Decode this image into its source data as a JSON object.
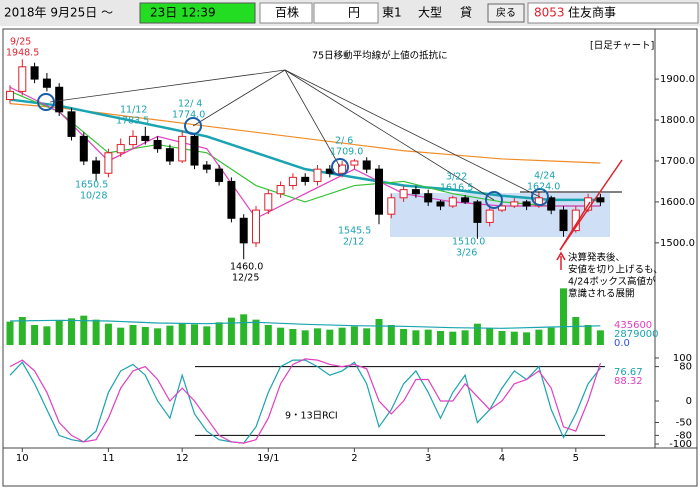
{
  "toolbar": {
    "date": "2018年 9月25日 ～",
    "time": "23日 12:39",
    "unit": "百株",
    "currency": "円",
    "market": "東1",
    "size": "大型",
    "lend": "貸",
    "back": "戻る",
    "code": "8053",
    "name": "住友商事"
  },
  "chart_data": {
    "type": "candlestick",
    "categories": [
      null,
      "10",
      null,
      null,
      null,
      null,
      null,
      null,
      "11",
      null,
      null,
      null,
      null,
      null,
      "12",
      null,
      null,
      null,
      null,
      null,
      null,
      "19/1",
      null,
      null,
      null,
      null,
      null,
      null,
      "2",
      null,
      null,
      null,
      null,
      null,
      "3",
      null,
      null,
      null,
      null,
      null,
      "4",
      null,
      null,
      null,
      null,
      null,
      "5",
      null,
      null
    ],
    "open": [
      1850,
      1870,
      1930,
      1900,
      1880,
      1820,
      1760,
      1700,
      1670,
      1720,
      1740,
      1760,
      1750,
      1730,
      1700,
      1760,
      1690,
      1680,
      1650,
      1560,
      1500,
      1580,
      1620,
      1640,
      1660,
      1650,
      1680,
      1670,
      1690,
      1700,
      1680,
      1570,
      1610,
      1630,
      1620,
      1600,
      1590,
      1610,
      1600,
      1550,
      1580,
      1590,
      1600,
      1590,
      1610,
      1580,
      1530,
      1580,
      1610
    ],
    "high": [
      1885,
      1948.5,
      1940,
      1915,
      1890,
      1830,
      1770,
      1710,
      1730,
      1755,
      1775,
      1783.5,
      1760,
      1740,
      1774,
      1765,
      1700,
      1690,
      1660,
      1570,
      1590,
      1630,
      1650,
      1670,
      1670,
      1690,
      1690,
      1700,
      1705,
      1709,
      1690,
      1620,
      1640,
      1640,
      1630,
      1605,
      1615,
      1616.5,
      1605,
      1590,
      1600,
      1610,
      1605,
      1624,
      1615,
      1590,
      1590,
      1620,
      1620
    ],
    "low": [
      1840,
      1860,
      1890,
      1870,
      1810,
      1750,
      1690,
      1650.5,
      1660,
      1710,
      1730,
      1740,
      1720,
      1690,
      1695,
      1680,
      1670,
      1640,
      1550,
      1460,
      1490,
      1570,
      1610,
      1630,
      1640,
      1640,
      1660,
      1660,
      1680,
      1670,
      1545.5,
      1560,
      1600,
      1610,
      1590,
      1580,
      1585,
      1595,
      1510,
      1540,
      1575,
      1585,
      1580,
      1585,
      1570,
      1515,
      1525,
      1575,
      1590
    ],
    "close": [
      1870,
      1930,
      1900,
      1880,
      1820,
      1760,
      1700,
      1670,
      1720,
      1740,
      1760,
      1750,
      1730,
      1700,
      1760,
      1690,
      1680,
      1650,
      1560,
      1500,
      1580,
      1620,
      1640,
      1660,
      1650,
      1680,
      1670,
      1690,
      1700,
      1680,
      1570,
      1610,
      1630,
      1620,
      1600,
      1590,
      1610,
      1600,
      1550,
      1580,
      1590,
      1600,
      1590,
      1610,
      1580,
      1530,
      1580,
      1610,
      1600
    ],
    "series": [
      {
        "color": "#f08c28",
        "x": [
          0,
          4,
          8,
          12,
          16,
          20,
          24,
          28,
          32,
          36,
          40,
          44,
          48
        ],
        "values": [
          1840,
          1830,
          1815,
          1800,
          1785,
          1770,
          1755,
          1740,
          1725,
          1715,
          1705,
          1700,
          1695
        ]
      },
      {
        "color": "#1aa3b0",
        "x": [
          0,
          4,
          8,
          12,
          16,
          20,
          24,
          28,
          32,
          36,
          40,
          44,
          48
        ],
        "values": [
          1850,
          1835,
          1810,
          1785,
          1760,
          1720,
          1680,
          1660,
          1640,
          1630,
          1615,
          1605,
          1605
        ]
      },
      {
        "color": "#33c233",
        "x": [
          0,
          4,
          8,
          12,
          16,
          20,
          24,
          28,
          32,
          36,
          40,
          44,
          48
        ],
        "values": [
          1870,
          1820,
          1720,
          1740,
          1720,
          1640,
          1600,
          1640,
          1650,
          1620,
          1600,
          1590,
          1590
        ]
      },
      {
        "color": "#e040c0",
        "x": [
          0,
          4,
          8,
          12,
          16,
          20,
          24,
          28,
          32,
          36,
          40,
          44,
          48
        ],
        "values": [
          1880,
          1820,
          1700,
          1760,
          1730,
          1560,
          1620,
          1680,
          1620,
          1600,
          1590,
          1590,
          1590
        ]
      }
    ],
    "ylim": [
      1463,
      2015
    ],
    "yticks": [
      {
        "value": 1900,
        "label": "1900.0"
      },
      {
        "value": 1800,
        "label": "1800.0"
      },
      {
        "value": 1700,
        "label": "1700.0"
      },
      {
        "value": 1600,
        "label": "1600.0"
      },
      {
        "value": 1500,
        "label": "1500.0"
      }
    ],
    "volume": {
      "color": "#2ab52a",
      "ylim": [
        0,
        9000000
      ],
      "values": [
        3500000,
        4200000,
        3000000,
        2800000,
        3600000,
        4000000,
        4400000,
        3800000,
        3200000,
        2600000,
        3000000,
        2700000,
        2500000,
        2900000,
        3300000,
        3100000,
        2800000,
        3400000,
        4100000,
        4600000,
        3800000,
        3000000,
        2600000,
        2400000,
        2200000,
        2500000,
        2300000,
        2600000,
        2800000,
        2500000,
        3900000,
        3000000,
        2400000,
        2200000,
        2300000,
        2100000,
        2000000,
        2200000,
        3200000,
        2500000,
        2100000,
        2000000,
        1900000,
        2300000,
        2600000,
        8500000,
        4200000,
        3000000,
        2200000
      ],
      "ma": {
        "color": "#1aa3b0",
        "x": [
          0,
          4,
          8,
          12,
          16,
          20,
          24,
          28,
          32,
          36,
          40,
          44,
          48
        ],
        "values": [
          3600000,
          3700000,
          3600000,
          3300000,
          3200000,
          3400000,
          3100000,
          2900000,
          2800000,
          2600000,
          2500000,
          2700000,
          2879000
        ]
      },
      "labels": [
        {
          "text": "435600",
          "color": "#e040c0"
        },
        {
          "text": "2879000",
          "color": "#1aa3b0"
        },
        {
          "text": "0.0",
          "color": "#3050e0"
        }
      ]
    },
    "rci": {
      "ylim": [
        -100,
        100
      ],
      "yticks": [
        100,
        80,
        0,
        -50,
        -80,
        -100
      ],
      "series": [
        {
          "color": "#1aa3b0",
          "values": [
            60,
            90,
            40,
            -20,
            -80,
            -90,
            -95,
            -70,
            20,
            70,
            85,
            60,
            0,
            -40,
            60,
            -30,
            -70,
            -90,
            -95,
            -98,
            -60,
            20,
            80,
            95,
            95,
            80,
            60,
            70,
            90,
            40,
            -60,
            -20,
            40,
            70,
            20,
            -40,
            20,
            60,
            -50,
            -20,
            30,
            70,
            50,
            80,
            -20,
            -85,
            -30,
            40,
            76.67
          ],
          "label": "76.67"
        },
        {
          "color": "#e040c0",
          "values": [
            80,
            95,
            70,
            20,
            -50,
            -80,
            -95,
            -90,
            -40,
            30,
            70,
            80,
            50,
            0,
            30,
            0,
            -40,
            -80,
            -95,
            -98,
            -90,
            -40,
            40,
            85,
            98,
            95,
            85,
            80,
            85,
            75,
            0,
            -30,
            0,
            50,
            50,
            0,
            0,
            40,
            10,
            -20,
            0,
            40,
            50,
            70,
            30,
            -60,
            -70,
            0,
            88.32
          ],
          "label": "88.32"
        }
      ]
    },
    "annotations": [
      "9/25",
      "1948.5",
      "11/12",
      "1783.5",
      "12/ 4",
      "1774.0",
      "1650.5",
      "10/28",
      "1460.0",
      "12/25",
      "2/ 6",
      "1709.0",
      "1545.5",
      "2/12",
      "3/22",
      "1616.5",
      "1510.0",
      "3/26",
      "4/24",
      "1624.0",
      "75日移動平均線が上値の抵抗に",
      "[日足チャート]",
      "決算発表後、",
      "安値を切り上げるも、",
      "4/24ボックス高値が",
      "意識される展開",
      "9・13日RCI"
    ]
  }
}
